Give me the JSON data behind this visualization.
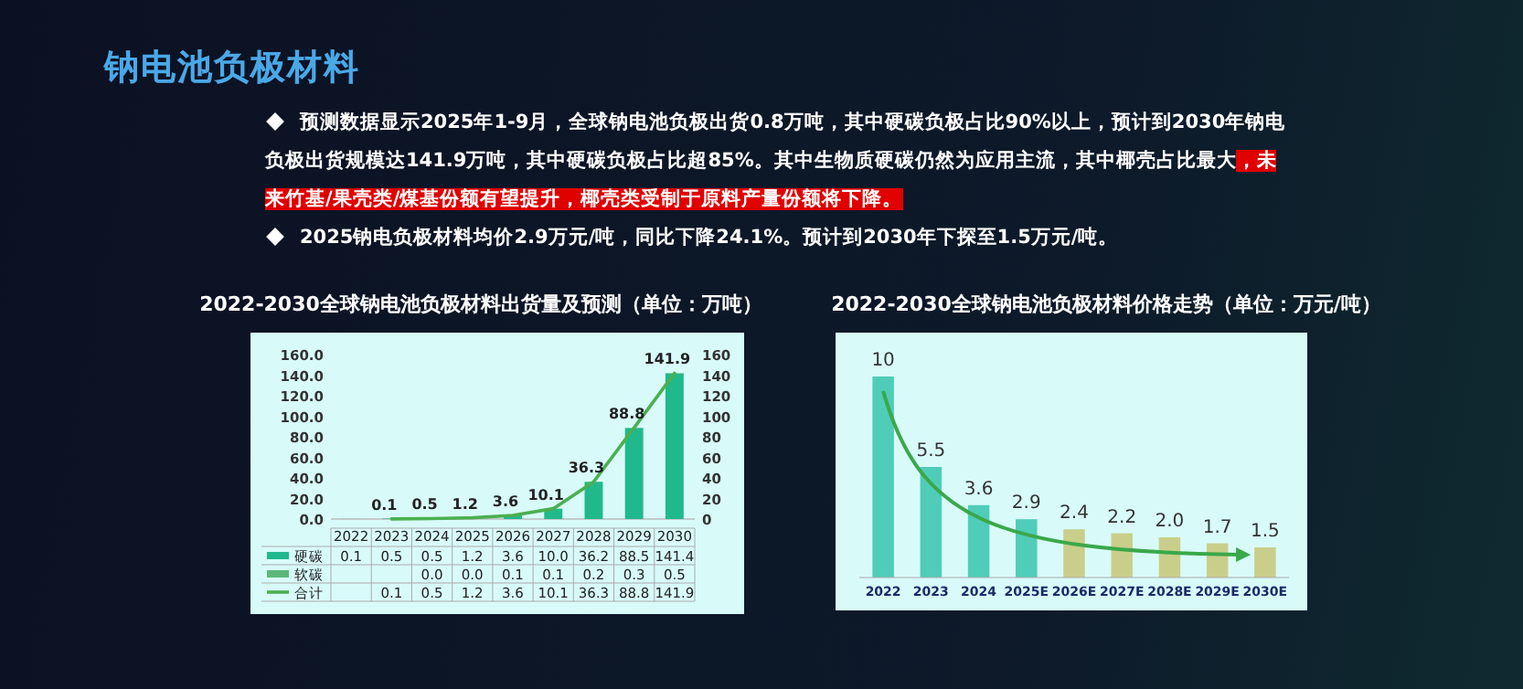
{
  "chart_data": [
    {
      "type": "other",
      "title": "钠电池负极材料",
      "annotations": [
        "预测数据显示2025年1-9月，全球钠电池负极出货0.8万吨，其中硬碳负极占比90%以上，预计到2030年钠电负极出货规模达141.9万吨，其中硬碳负极占比超85%。其中生物质硬碳仍然为应用主流，其中椰壳占比最大",
        "，未来竹基/果壳类/煤基份额有望提升，椰壳类受制于原料产量份额将下降。",
        "2025钠电负极材料均价2.9万元/吨，同比下降24.1%。预计到2030年下探至1.5万元/吨。"
      ]
    },
    {
      "type": "bar",
      "title": "2022-2030全球钠电池负极材料出货量及预测（单位：万吨）",
      "categories": [
        "2022",
        "2023",
        "2024",
        "2025",
        "2026",
        "2027",
        "2028",
        "2029",
        "2030"
      ],
      "stacked": true,
      "series": [
        {
          "name": "硬碳",
          "color": "#1fb98c",
          "values": [
            0.1,
            0.5,
            0.5,
            1.2,
            3.6,
            10.0,
            36.2,
            88.5,
            141.4
          ],
          "value_labels": [
            "0.1",
            "0.5",
            "0.5",
            "1.2",
            "3.6",
            "10.0",
            "36.2",
            "88.5",
            "141.4"
          ]
        },
        {
          "name": "软碳",
          "color": "#5cb878",
          "values": [
            null,
            null,
            0.0,
            0.0,
            0.1,
            0.1,
            0.2,
            0.3,
            0.5
          ],
          "value_labels": [
            null,
            null,
            "0.0",
            "0.0",
            "0.1",
            "0.1",
            "0.2",
            "0.3",
            "0.5"
          ]
        },
        {
          "name": "合计",
          "type": "line",
          "axis": "y2",
          "color": "#4caf50",
          "values": [
            null,
            0.1,
            0.5,
            1.2,
            3.6,
            10.1,
            36.3,
            88.8,
            141.9
          ],
          "value_labels": [
            null,
            "0.1",
            "0.5",
            "1.2",
            "3.6",
            "10.1",
            "36.3",
            "88.8",
            "141.9"
          ]
        }
      ],
      "ylim": [
        0,
        160
      ],
      "yticks": [
        {
          "value": 0,
          "label": "0.0"
        },
        {
          "value": 20,
          "label": "20.0"
        },
        {
          "value": 40,
          "label": "40.0"
        },
        {
          "value": 60,
          "label": "60.0"
        },
        {
          "value": 80,
          "label": "80.0"
        },
        {
          "value": 100,
          "label": "100.0"
        },
        {
          "value": 120,
          "label": "120.0"
        },
        {
          "value": 140,
          "label": "140.0"
        },
        {
          "value": 160,
          "label": "160.0"
        }
      ],
      "y2lim": [
        0,
        160
      ],
      "y2ticks": [
        0,
        20,
        40,
        60,
        80,
        100,
        120,
        140,
        160
      ],
      "legend": "bottom"
    },
    {
      "type": "bar",
      "title": "2022-2030全球钠电池负极材料价格走势（单位：万元/吨）",
      "categories": [
        "2022",
        "2023",
        "2024",
        "2025E",
        "2026E",
        "2027E",
        "2028E",
        "2029E",
        "2030E"
      ],
      "values": [
        10,
        5.5,
        3.6,
        2.9,
        2.4,
        2.2,
        2.0,
        1.7,
        1.5
      ],
      "value_labels": [
        "10",
        "5.5",
        "3.6",
        "2.9",
        "2.4",
        "2.2",
        "2.0",
        "1.7",
        "1.5"
      ],
      "colors": [
        "#4fcdb8",
        "#4fcdb8",
        "#4fcdb8",
        "#4fcdb8",
        "#c9cf8a",
        "#c9cf8a",
        "#c9cf8a",
        "#c9cf8a",
        "#c9cf8a"
      ]
    }
  ]
}
